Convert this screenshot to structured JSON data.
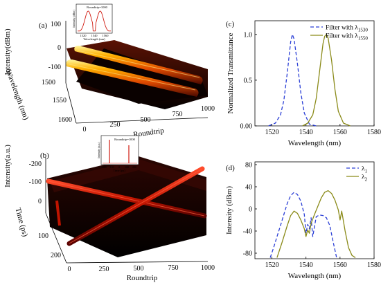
{
  "panel_a": {
    "label": "(a)",
    "z_axis_label": "Intensity(dBm)",
    "y_axis_label": "Wavelength (nm)",
    "x_axis_label": "Roundtrip",
    "z_ticks": [
      "100",
      "0",
      "-100"
    ],
    "y_ticks": [
      "1500",
      "1550",
      "1600"
    ],
    "x_ticks": [
      "0",
      "250",
      "500",
      "750",
      "1000"
    ],
    "inset": {
      "ylabel": "Intensity (dBm)",
      "xlabel": "Wavelength (nm)",
      "annotation": "Roundtrip=1000",
      "x_ticks": [
        "1520",
        "1540",
        "1560"
      ]
    }
  },
  "panel_b": {
    "label": "(b)",
    "z_axis_label": "Intensity(a.u.)",
    "y_axis_label": "Time (ps)",
    "x_axis_label": "Roundtrip",
    "z_ticks": [
      "-200",
      "-100",
      "0",
      "100",
      "200"
    ],
    "x_ticks": [
      "0",
      "250",
      "500",
      "750",
      "1000"
    ],
    "inset": {
      "ylabel": "Intensity (a.u.)",
      "xlabel": "Time (ps)",
      "annotation": "Roundtrip=1000",
      "x_ticks": [
        "-200",
        "-100",
        "0",
        "100",
        "200"
      ]
    }
  },
  "chart_data": [
    {
      "type": "line",
      "panel": "(c)",
      "xlabel": "Wavelength (nm)",
      "ylabel": "Normalized Transmittance",
      "xlim": [
        1510,
        1580
      ],
      "ylim": [
        0,
        1.15
      ],
      "x_ticks": [
        "1520",
        "1540",
        "1560",
        "1580"
      ],
      "y_ticks": [
        "0.00",
        "0.5",
        "1.0"
      ],
      "legend_position": "top-right",
      "series": [
        {
          "name": "Filter with λ1530",
          "legend_main": "Filter with λ",
          "legend_sub": "1530",
          "color": "#2b3fd6",
          "style": "dashed",
          "x": [
            1518,
            1522,
            1525,
            1527,
            1529,
            1531,
            1532,
            1533,
            1535,
            1537,
            1539,
            1542,
            1546
          ],
          "y": [
            0.0,
            0.03,
            0.12,
            0.28,
            0.58,
            0.92,
            1.0,
            0.95,
            0.68,
            0.36,
            0.14,
            0.02,
            0.0
          ]
        },
        {
          "name": "Filter with λ1550",
          "legend_main": "Filter with λ",
          "legend_sub": "1550",
          "color": "#8a8a18",
          "style": "solid",
          "x": [
            1538,
            1541,
            1544,
            1546,
            1548,
            1550,
            1551,
            1552,
            1553,
            1555,
            1557,
            1559,
            1562,
            1566
          ],
          "y": [
            0.0,
            0.03,
            0.12,
            0.3,
            0.6,
            0.9,
            0.98,
            1.0,
            0.96,
            0.72,
            0.4,
            0.16,
            0.03,
            0.0
          ]
        }
      ]
    },
    {
      "type": "line",
      "panel": "(d)",
      "xlabel": "Wavelength (nm)",
      "ylabel": "Intensity (dBm)",
      "xlim": [
        1510,
        1580
      ],
      "ylim": [
        -90,
        85
      ],
      "x_ticks": [
        "1520",
        "1540",
        "1560",
        "1580"
      ],
      "y_ticks": [
        "80",
        "40",
        "0",
        "-40",
        "-80"
      ],
      "legend_position": "top-right",
      "series": [
        {
          "name": "λ1",
          "legend_main": "λ",
          "legend_sub": "1",
          "color": "#2b3fd6",
          "style": "dashed",
          "x": [
            1519,
            1521,
            1523,
            1525,
            1527,
            1529,
            1531,
            1533,
            1535,
            1537,
            1539,
            1540,
            1541,
            1542,
            1543,
            1544,
            1546,
            1548,
            1550,
            1552,
            1554,
            1556,
            1558
          ],
          "y": [
            -88,
            -70,
            -50,
            -30,
            -10,
            10,
            24,
            30,
            26,
            14,
            -10,
            -44,
            -28,
            -36,
            -16,
            -50,
            -14,
            -11,
            -12,
            -16,
            -30,
            -60,
            -88
          ]
        },
        {
          "name": "λ2",
          "legend_main": "λ",
          "legend_sub": "2",
          "color": "#8a8a18",
          "style": "solid",
          "x": [
            1523,
            1526,
            1529,
            1531,
            1533,
            1535,
            1537,
            1539,
            1540,
            1541,
            1542,
            1543,
            1545,
            1547,
            1549,
            1551,
            1553,
            1555,
            1557,
            1559,
            1560,
            1561,
            1563,
            1565,
            1567,
            1569
          ],
          "y": [
            -88,
            -60,
            -30,
            -12,
            -4,
            -8,
            -20,
            -36,
            -50,
            -38,
            -44,
            -26,
            -10,
            5,
            20,
            30,
            33,
            28,
            16,
            -2,
            -20,
            -4,
            -40,
            -70,
            -84,
            -88
          ]
        }
      ]
    }
  ]
}
